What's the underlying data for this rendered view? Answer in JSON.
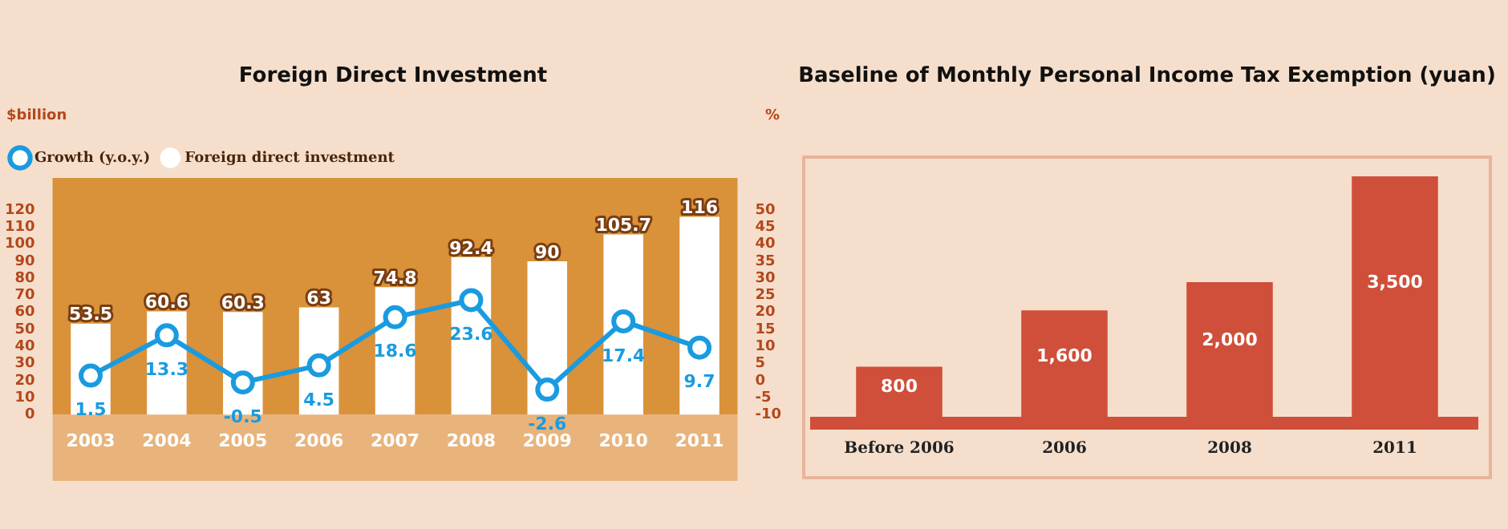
{
  "chart_data": [
    {
      "type": "bar",
      "title": "Foreign Direct Investment",
      "ylabel": "$billion",
      "y2label": "%",
      "categories": [
        "2003",
        "2004",
        "2005",
        "2006",
        "2007",
        "2008",
        "2009",
        "2010",
        "2011"
      ],
      "series": [
        {
          "name": "Foreign direct investment",
          "type": "bar",
          "color": "#ffffff",
          "values": [
            53.5,
            60.6,
            60.3,
            63,
            74.8,
            92.4,
            90,
            105.7,
            116
          ]
        },
        {
          "name": "Growth (y.o.y.)",
          "type": "line",
          "axis": "y2",
          "color": "#1a9be0",
          "values": [
            1.5,
            13.3,
            -0.5,
            4.5,
            18.6,
            23.6,
            -2.6,
            17.4,
            9.7
          ]
        }
      ],
      "ylim": [
        0,
        120
      ],
      "yticks": [
        0,
        10,
        20,
        30,
        40,
        50,
        60,
        70,
        80,
        90,
        100,
        110,
        120
      ],
      "y2lim": [
        -10,
        50
      ],
      "y2ticks": [
        -10,
        -5,
        0,
        5,
        10,
        15,
        20,
        25,
        30,
        35,
        40,
        45,
        50
      ],
      "data_labels": true,
      "legend": "top left",
      "marker": "circle",
      "grid": false
    },
    {
      "type": "bar",
      "title": "Baseline of Monthly Personal Income Tax Exemption  (yuan)",
      "categories": [
        "Before 2006",
        "2006",
        "2008",
        "2011"
      ],
      "values": [
        800,
        1600,
        2000,
        3500
      ],
      "color": "#cf4f3a",
      "data_labels": true,
      "value_labels": [
        "800",
        "1,600",
        "2,000",
        "3,500"
      ],
      "tick_labels": "x"
    }
  ]
}
